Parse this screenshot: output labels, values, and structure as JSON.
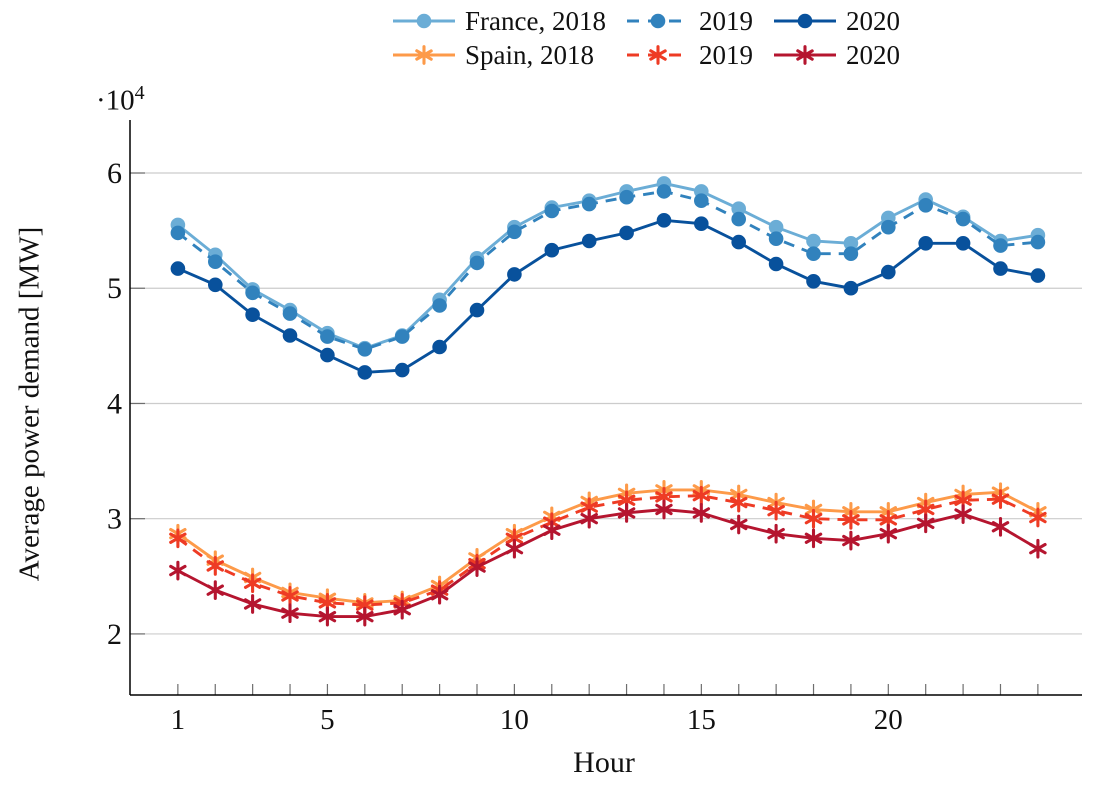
{
  "figure": {
    "background": "#ffffff",
    "axis_color": "#000000",
    "grid_color": "#cccccc",
    "tick_color": "#6e6e6e",
    "text_color": "#111111"
  },
  "chart_data": {
    "type": "line",
    "title": "",
    "xlabel": "Hour",
    "ylabel": "Average power demand [MW]",
    "y_exponent": {
      "base": "·10",
      "exp": "4"
    },
    "grid": "horizontal",
    "legend_position": "top-center",
    "x": [
      1,
      2,
      3,
      4,
      5,
      6,
      7,
      8,
      9,
      10,
      11,
      12,
      13,
      14,
      15,
      16,
      17,
      18,
      19,
      20,
      21,
      22,
      23,
      24
    ],
    "x_tick_labels": [
      1,
      5,
      10,
      15,
      20
    ],
    "y_ticks": [
      2,
      3,
      4,
      5,
      6
    ],
    "y_tick_scale": 10000,
    "xlim": [
      -0.28,
      25.18
    ],
    "ylim": [
      14700,
      64600
    ],
    "series": [
      {
        "id": "france-2018",
        "name": "France, 2018",
        "color": "#6badd6",
        "line": "solid",
        "marker": "circle",
        "values": [
          55500,
          52900,
          49900,
          48100,
          46100,
          44800,
          45900,
          49000,
          52600,
          55300,
          57000,
          57600,
          58400,
          59100,
          58400,
          56900,
          55300,
          54100,
          53900,
          56100,
          57700,
          56200,
          54100,
          54600
        ]
      },
      {
        "id": "france-2019",
        "name": "2019",
        "color": "#3182bd",
        "line": "dashed",
        "marker": "circle",
        "values": [
          54800,
          52300,
          49600,
          47800,
          45800,
          44700,
          45800,
          48500,
          52200,
          54900,
          56700,
          57300,
          57900,
          58400,
          57600,
          56000,
          54300,
          53000,
          53000,
          55300,
          57200,
          56000,
          53700,
          54000
        ]
      },
      {
        "id": "france-2020",
        "name": "2020",
        "color": "#08519c",
        "line": "solid",
        "marker": "circle",
        "values": [
          51700,
          50300,
          47700,
          45900,
          44200,
          42700,
          42900,
          44900,
          48100,
          51200,
          53300,
          54100,
          54800,
          55900,
          55600,
          54000,
          52100,
          50600,
          50000,
          51400,
          53900,
          53900,
          51700,
          51100
        ]
      },
      {
        "id": "spain-2018",
        "name": "Spain, 2018",
        "color": "#fd9a49",
        "line": "solid",
        "marker": "star",
        "values": [
          28700,
          26400,
          24900,
          23600,
          23100,
          22700,
          22900,
          24200,
          26600,
          28700,
          30200,
          31500,
          32200,
          32500,
          32500,
          32100,
          31400,
          30800,
          30600,
          30600,
          31400,
          32100,
          32300,
          30600
        ]
      },
      {
        "id": "spain-2019",
        "name": "2019",
        "color": "#ee3b24",
        "line": "dashed",
        "marker": "star",
        "values": [
          28300,
          25900,
          24400,
          23300,
          22700,
          22500,
          22700,
          23800,
          26100,
          28300,
          29700,
          31000,
          31600,
          31900,
          32000,
          31400,
          30700,
          30000,
          29900,
          29900,
          30800,
          31600,
          31700,
          30100
        ]
      },
      {
        "id": "spain-2020",
        "name": "2020",
        "color": "#b5152f",
        "line": "solid",
        "marker": "star",
        "values": [
          25500,
          23800,
          22600,
          21800,
          21500,
          21500,
          22100,
          23400,
          25800,
          27400,
          29000,
          30000,
          30500,
          30800,
          30500,
          29500,
          28700,
          28300,
          28100,
          28700,
          29600,
          30400,
          29300,
          27400
        ]
      }
    ]
  }
}
